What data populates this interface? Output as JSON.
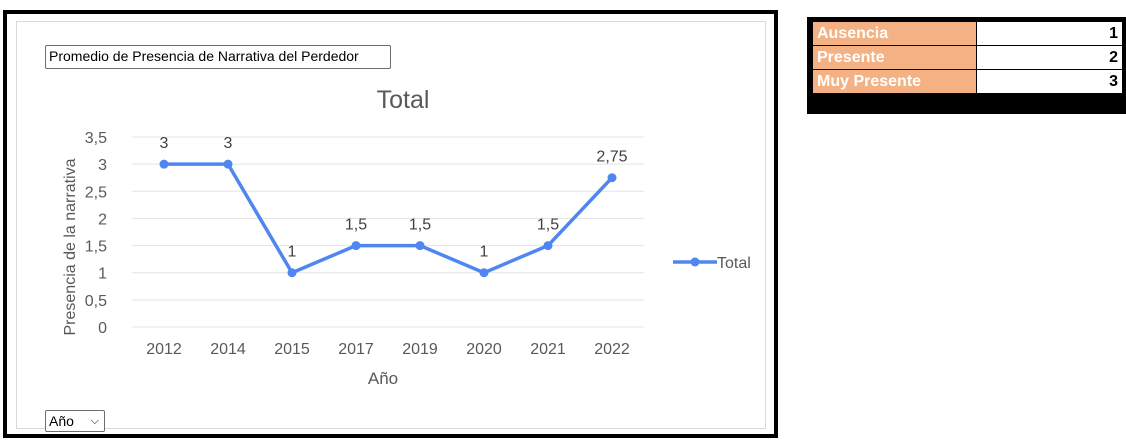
{
  "pivot_filter_button": "Promedio de Presencia de Narrativa del Perdedor",
  "axis_field_button": "Año",
  "axis_field_chevron_icon": "chevron-down-icon",
  "chart_data": {
    "type": "line",
    "title": "Total",
    "xlabel": "Año",
    "ylabel": "Presencia de la narrativa",
    "categories": [
      "2012",
      "2014",
      "2015",
      "2017",
      "2019",
      "2020",
      "2021",
      "2022"
    ],
    "series": [
      {
        "name": "Total",
        "values": [
          3,
          3,
          1,
          1.5,
          1.5,
          1,
          1.5,
          2.75
        ],
        "color": "#4f86f0"
      }
    ],
    "data_labels": [
      "3",
      "3",
      "1",
      "1,5",
      "1,5",
      "1",
      "1,5",
      "2,75"
    ],
    "ylim": [
      0,
      3.5
    ],
    "yticks": [
      "0",
      "0,5",
      "1",
      "1,5",
      "2",
      "2,5",
      "3",
      "3,5"
    ],
    "grid": true,
    "legend": "right"
  },
  "scale_table": {
    "rows": [
      {
        "label": "Ausencia",
        "value": "1"
      },
      {
        "label": "Presente",
        "value": "2"
      },
      {
        "label": "Muy Presente",
        "value": "3"
      }
    ],
    "label_color": "#f4b183"
  }
}
